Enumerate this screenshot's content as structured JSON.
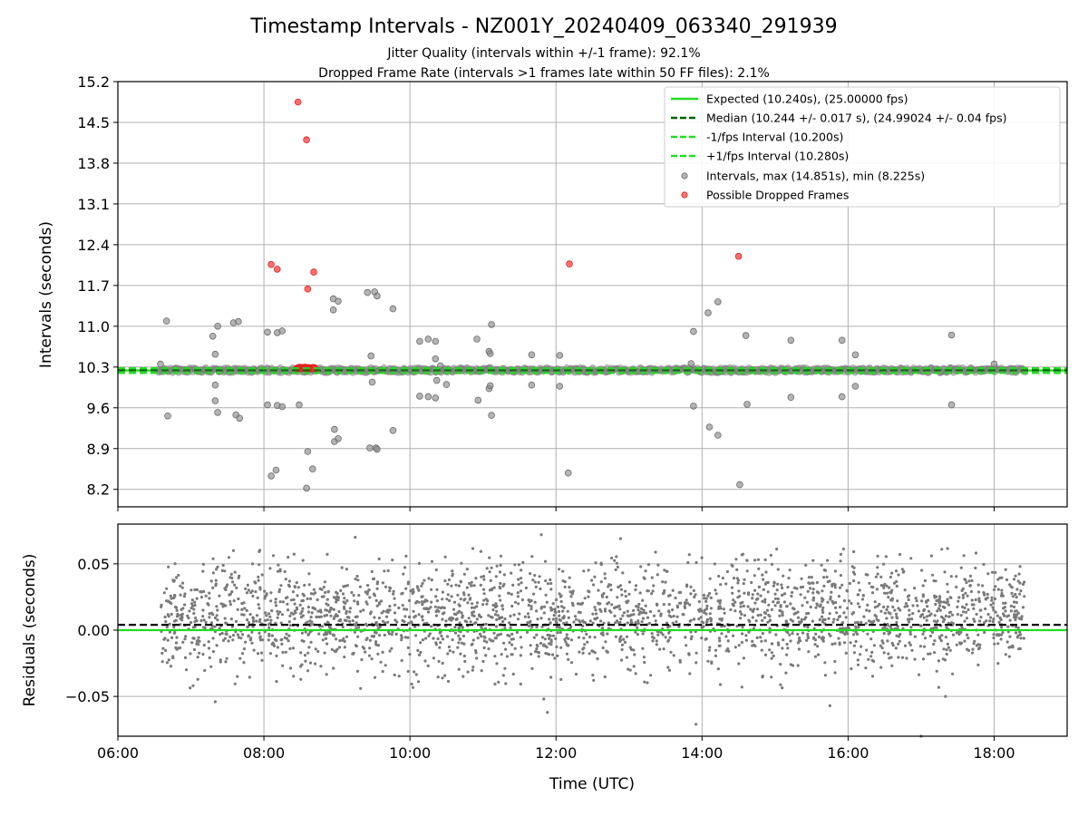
{
  "chart_data": [
    {
      "type": "scatter",
      "title": "Timestamp Intervals - NZ001Y_20240409_063340_291939",
      "subtitle_lines": [
        "Jitter Quality (intervals within +/-1 frame): 92.1%",
        "Dropped Frame Rate (intervals >1 frames late within 50 FF files): 2.1%"
      ],
      "ylabel": "Intervals (seconds)",
      "ylim": [
        7.9,
        15.2
      ],
      "yticks": [
        "8.2",
        "8.9",
        "9.6",
        "10.3",
        "11.0",
        "11.7",
        "12.4",
        "13.1",
        "13.8",
        "14.5",
        "15.2"
      ],
      "xlim_hours": [
        6.0,
        19.0
      ],
      "grid": true,
      "legend_position": "top-right",
      "lines": [
        {
          "name": "Expected (10.240s), (25.00000 fps)",
          "y": 10.24,
          "style": "solid",
          "color": "#22dd22"
        },
        {
          "name": "Median (10.244 +/- 0.017 s), (24.99024 +/- 0.04 fps)",
          "y": 10.244,
          "style": "dashed",
          "color": "#006400"
        },
        {
          "name": "-1/fps Interval (10.200s)",
          "y": 10.2,
          "style": "dashed",
          "color": "#22dd22"
        },
        {
          "name": "+1/fps Interval (10.280s)",
          "y": 10.28,
          "style": "dashed",
          "color": "#22dd22"
        }
      ],
      "series": [
        {
          "name": "Intervals, max (14.851s), min (8.225s)",
          "color": "#8c8c8c",
          "dense_band": {
            "x_start": "06:33",
            "x_end": "18:25",
            "y_low": 10.2,
            "y_high": 10.29
          },
          "outliers": [
            {
              "x": "06:35",
              "y": 10.35
            },
            {
              "x": "06:40",
              "y": 11.09
            },
            {
              "x": "06:41",
              "y": 9.46
            },
            {
              "x": "07:18",
              "y": 10.83
            },
            {
              "x": "07:20",
              "y": 10.52
            },
            {
              "x": "07:20",
              "y": 9.99
            },
            {
              "x": "07:20",
              "y": 9.72
            },
            {
              "x": "07:22",
              "y": 11.0
            },
            {
              "x": "07:22",
              "y": 9.52
            },
            {
              "x": "07:35",
              "y": 11.06
            },
            {
              "x": "07:37",
              "y": 9.48
            },
            {
              "x": "07:39",
              "y": 11.08
            },
            {
              "x": "07:40",
              "y": 9.42
            },
            {
              "x": "08:03",
              "y": 10.9
            },
            {
              "x": "08:03",
              "y": 9.65
            },
            {
              "x": "08:06",
              "y": 8.43
            },
            {
              "x": "08:10",
              "y": 8.53
            },
            {
              "x": "08:11",
              "y": 10.89
            },
            {
              "x": "08:11",
              "y": 9.64
            },
            {
              "x": "08:15",
              "y": 10.92
            },
            {
              "x": "08:15",
              "y": 9.62
            },
            {
              "x": "08:29",
              "y": 9.65
            },
            {
              "x": "08:35",
              "y": 8.22
            },
            {
              "x": "08:36",
              "y": 8.85
            },
            {
              "x": "08:40",
              "y": 8.55
            },
            {
              "x": "08:57",
              "y": 11.47
            },
            {
              "x": "08:57",
              "y": 11.28
            },
            {
              "x": "08:58",
              "y": 9.23
            },
            {
              "x": "08:58",
              "y": 9.02
            },
            {
              "x": "09:01",
              "y": 11.43
            },
            {
              "x": "09:01",
              "y": 9.07
            },
            {
              "x": "09:25",
              "y": 11.58
            },
            {
              "x": "09:27",
              "y": 8.91
            },
            {
              "x": "09:28",
              "y": 10.49
            },
            {
              "x": "09:29",
              "y": 10.04
            },
            {
              "x": "09:31",
              "y": 11.59
            },
            {
              "x": "09:32",
              "y": 8.91
            },
            {
              "x": "09:33",
              "y": 8.89
            },
            {
              "x": "09:33",
              "y": 11.52
            },
            {
              "x": "09:46",
              "y": 11.3
            },
            {
              "x": "09:46",
              "y": 9.21
            },
            {
              "x": "10:08",
              "y": 10.74
            },
            {
              "x": "10:08",
              "y": 9.8
            },
            {
              "x": "10:15",
              "y": 10.78
            },
            {
              "x": "10:15",
              "y": 9.79
            },
            {
              "x": "10:21",
              "y": 10.74
            },
            {
              "x": "10:21",
              "y": 9.77
            },
            {
              "x": "10:21",
              "y": 10.44
            },
            {
              "x": "10:22",
              "y": 10.07
            },
            {
              "x": "10:25",
              "y": 10.32
            },
            {
              "x": "10:30",
              "y": 10.0
            },
            {
              "x": "10:55",
              "y": 10.78
            },
            {
              "x": "10:56",
              "y": 9.73
            },
            {
              "x": "11:05",
              "y": 10.57
            },
            {
              "x": "11:05",
              "y": 9.93
            },
            {
              "x": "11:06",
              "y": 10.53
            },
            {
              "x": "11:06",
              "y": 9.98
            },
            {
              "x": "11:07",
              "y": 11.03
            },
            {
              "x": "11:07",
              "y": 9.47
            },
            {
              "x": "11:40",
              "y": 10.51
            },
            {
              "x": "11:40",
              "y": 9.99
            },
            {
              "x": "12:03",
              "y": 10.5
            },
            {
              "x": "12:03",
              "y": 9.97
            },
            {
              "x": "12:10",
              "y": 8.48
            },
            {
              "x": "13:51",
              "y": 10.36
            },
            {
              "x": "13:53",
              "y": 10.91
            },
            {
              "x": "13:53",
              "y": 9.63
            },
            {
              "x": "14:05",
              "y": 11.23
            },
            {
              "x": "14:06",
              "y": 9.27
            },
            {
              "x": "14:13",
              "y": 11.42
            },
            {
              "x": "14:13",
              "y": 9.13
            },
            {
              "x": "14:31",
              "y": 8.28
            },
            {
              "x": "14:36",
              "y": 10.84
            },
            {
              "x": "14:37",
              "y": 9.66
            },
            {
              "x": "15:13",
              "y": 10.76
            },
            {
              "x": "15:13",
              "y": 9.78
            },
            {
              "x": "15:55",
              "y": 10.76
            },
            {
              "x": "15:55",
              "y": 9.79
            },
            {
              "x": "16:06",
              "y": 10.51
            },
            {
              "x": "16:06",
              "y": 9.97
            },
            {
              "x": "17:25",
              "y": 10.85
            },
            {
              "x": "17:25",
              "y": 9.65
            },
            {
              "x": "18:00",
              "y": 10.35
            }
          ]
        },
        {
          "name": "Possible Dropped Frames",
          "color": "#ff3333",
          "points": [
            {
              "x": "08:06",
              "y": 12.06
            },
            {
              "x": "08:11",
              "y": 11.98
            },
            {
              "x": "08:28",
              "y": 14.85
            },
            {
              "x": "08:35",
              "y": 14.2
            },
            {
              "x": "08:36",
              "y": 11.64
            },
            {
              "x": "08:41",
              "y": 11.93
            },
            {
              "x": "12:11",
              "y": 12.07
            },
            {
              "x": "14:30",
              "y": 12.2
            }
          ],
          "cluster": {
            "x_start": "08:27",
            "x_end": "08:42",
            "y": 10.28
          }
        }
      ]
    },
    {
      "type": "scatter",
      "ylabel": "Residuals (seconds)",
      "xlabel": "Time (UTC)",
      "ylim": [
        -0.08,
        0.08
      ],
      "yticks": [
        "−0.05",
        "0.00",
        "0.05"
      ],
      "xticks": [
        "06:00",
        "08:00",
        "10:00",
        "12:00",
        "14:00",
        "16:00",
        "18:00"
      ],
      "xlim_hours": [
        6.0,
        19.0
      ],
      "grid": true,
      "lines": [
        {
          "y": 0.0,
          "style": "solid",
          "color": "#22dd22"
        },
        {
          "y": 0.004,
          "style": "dashed",
          "color": "#000000"
        }
      ],
      "series": [
        {
          "color": "#7a7a7a",
          "distribution": {
            "x_start": "06:35",
            "x_end": "18:25",
            "center": 0.01,
            "spread": 0.02
          },
          "extremes": [
            {
              "x": "07:20",
              "y": -0.054
            },
            {
              "x": "07:35",
              "y": 0.06
            },
            {
              "x": "09:15",
              "y": 0.07
            },
            {
              "x": "11:50",
              "y": -0.052
            },
            {
              "x": "11:53",
              "y": -0.062
            },
            {
              "x": "11:48",
              "y": 0.072
            },
            {
              "x": "12:53",
              "y": 0.069
            },
            {
              "x": "13:55",
              "y": -0.071
            },
            {
              "x": "15:45",
              "y": -0.057
            },
            {
              "x": "17:00",
              "y": -0.08
            },
            {
              "x": "17:17",
              "y": 0.061
            },
            {
              "x": "17:20",
              "y": -0.05
            }
          ]
        }
      ]
    }
  ]
}
